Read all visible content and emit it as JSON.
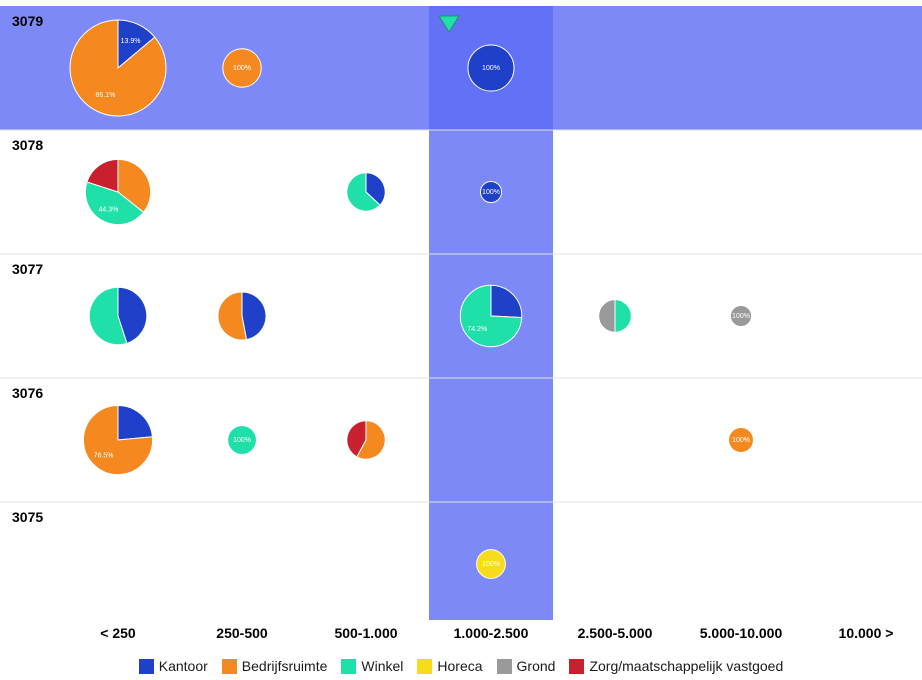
{
  "chart_data": {
    "type": "pie-matrix",
    "categories_order": [
      "Kantoor",
      "Bedrijfsruimte",
      "Winkel",
      "Horeca",
      "Grond",
      "Zorg/maatschappelijk vastgoed"
    ],
    "colors": {
      "Kantoor": "#1f40c8",
      "Bedrijfsruimte": "#f5891f",
      "Winkel": "#1fe0a8",
      "Horeca": "#f7dc1b",
      "Grond": "#9a9a9a",
      "Zorg/maatschappelijk vastgoed": "#c8202e",
      "highlight": "#5b6cf5"
    },
    "rows": [
      "3079",
      "3078",
      "3077",
      "3076",
      "3075"
    ],
    "columns": [
      "< 250",
      "250-500",
      "500-1.000",
      "1.000-2.500",
      "2.500-5.000",
      "5.000-10.000",
      "10.000 >"
    ],
    "highlight": {
      "row": "3079",
      "column": "1.000-2.500"
    },
    "cells": [
      {
        "row": "3079",
        "column": "< 250",
        "size": 1.0,
        "slices": [
          {
            "category": "Kantoor",
            "value": 13.9,
            "label": "13.9%"
          },
          {
            "category": "Bedrijfsruimte",
            "value": 86.1,
            "label": "86.1%"
          }
        ]
      },
      {
        "row": "3079",
        "column": "250-500",
        "size": 0.4,
        "slices": [
          {
            "category": "Bedrijfsruimte",
            "value": 100,
            "label": "100%"
          }
        ]
      },
      {
        "row": "3079",
        "column": "1.000-2.500",
        "size": 0.48,
        "slices": [
          {
            "category": "Kantoor",
            "value": 100,
            "label": "100%"
          }
        ]
      },
      {
        "row": "3078",
        "column": "< 250",
        "size": 0.68,
        "slices": [
          {
            "category": "Bedrijfsruimte",
            "value": 35.7
          },
          {
            "category": "Winkel",
            "value": 44.3,
            "label": "44.3%"
          },
          {
            "category": "Zorg/maatschappelijk vastgoed",
            "value": 20
          }
        ]
      },
      {
        "row": "3078",
        "column": "500-1.000",
        "size": 0.4,
        "slices": [
          {
            "category": "Kantoor",
            "value": 37
          },
          {
            "category": "Winkel",
            "value": 63
          }
        ]
      },
      {
        "row": "3078",
        "column": "1.000-2.500",
        "size": 0.22,
        "slices": [
          {
            "category": "Kantoor",
            "value": 100,
            "label": "100%"
          }
        ]
      },
      {
        "row": "3077",
        "column": "< 250",
        "size": 0.6,
        "slices": [
          {
            "category": "Kantoor",
            "value": 45
          },
          {
            "category": "Winkel",
            "value": 55
          }
        ]
      },
      {
        "row": "3077",
        "column": "250-500",
        "size": 0.5,
        "slices": [
          {
            "category": "Kantoor",
            "value": 47
          },
          {
            "category": "Bedrijfsruimte",
            "value": 53
          }
        ]
      },
      {
        "row": "3077",
        "column": "1.000-2.500",
        "size": 0.64,
        "slices": [
          {
            "category": "Kantoor",
            "value": 25.8
          },
          {
            "category": "Winkel",
            "value": 74.2,
            "label": "74.2%"
          }
        ]
      },
      {
        "row": "3077",
        "column": "2.500-5.000",
        "size": 0.34,
        "slices": [
          {
            "category": "Winkel",
            "value": 50
          },
          {
            "category": "Grond",
            "value": 50
          }
        ]
      },
      {
        "row": "3077",
        "column": "5.000-10.000",
        "size": 0.22,
        "slices": [
          {
            "category": "Grond",
            "value": 100,
            "label": "100%"
          }
        ]
      },
      {
        "row": "3076",
        "column": "< 250",
        "size": 0.72,
        "slices": [
          {
            "category": "Kantoor",
            "value": 23.5
          },
          {
            "category": "Bedrijfsruimte",
            "value": 76.5,
            "label": "76.5%"
          }
        ]
      },
      {
        "row": "3076",
        "column": "250-500",
        "size": 0.3,
        "slices": [
          {
            "category": "Winkel",
            "value": 100,
            "label": "100%"
          }
        ]
      },
      {
        "row": "3076",
        "column": "500-1.000",
        "size": 0.4,
        "slices": [
          {
            "category": "Bedrijfsruimte",
            "value": 58
          },
          {
            "category": "Zorg/maatschappelijk vastgoed",
            "value": 42
          }
        ]
      },
      {
        "row": "3076",
        "column": "5.000-10.000",
        "size": 0.26,
        "slices": [
          {
            "category": "Bedrijfsruimte",
            "value": 100,
            "label": "100%"
          }
        ]
      },
      {
        "row": "3075",
        "column": "1.000-2.500",
        "size": 0.3,
        "slices": [
          {
            "category": "Horeca",
            "value": 100,
            "label": "100%"
          }
        ]
      }
    ]
  },
  "legend": [
    {
      "label": "Kantoor",
      "color": "#1f40c8"
    },
    {
      "label": "Bedrijfsruimte",
      "color": "#f5891f"
    },
    {
      "label": "Winkel",
      "color": "#1fe0a8"
    },
    {
      "label": "Horeca",
      "color": "#f7dc1b"
    },
    {
      "label": "Grond",
      "color": "#9a9a9a"
    },
    {
      "label": "Zorg/maatschappelijk vastgoed",
      "color": "#c8202e"
    }
  ]
}
